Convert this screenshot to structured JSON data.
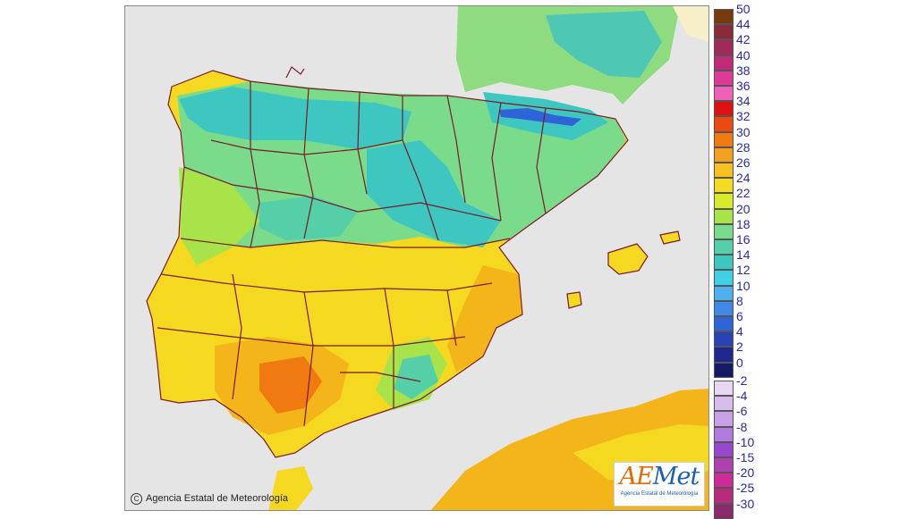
{
  "map": {
    "credit_symbol": "C",
    "credit": "Agencia Estatal de Meteorología",
    "logo_text": "Met",
    "logo_a": "AE",
    "logo_sub": "Agencia Estatal de Meteorología",
    "colors": {
      "sea": "#e5e5e5",
      "land_warm": "#f5d820",
      "land_hot": "#f3b51a",
      "land_mild": "#a8e34a",
      "land_cool": "#66d6a8",
      "land_cold": "#35b8b0",
      "boundary": "#7a1a28"
    }
  },
  "legend": {
    "positive": [
      {
        "label": "50",
        "color": "#7a3a10"
      },
      {
        "label": "44",
        "color": "#8a2a3a"
      },
      {
        "label": "42",
        "color": "#a02a58"
      },
      {
        "label": "40",
        "color": "#c02a78"
      },
      {
        "label": "38",
        "color": "#e03a98"
      },
      {
        "label": "36",
        "color": "#f060b8"
      },
      {
        "label": "34",
        "color": "#e01010"
      },
      {
        "label": "32",
        "color": "#ec4a10"
      },
      {
        "label": "30",
        "color": "#f07a10"
      },
      {
        "label": "28",
        "color": "#f3a020"
      },
      {
        "label": "26",
        "color": "#f5c020"
      },
      {
        "label": "24",
        "color": "#f5d820"
      },
      {
        "label": "22",
        "color": "#d6ec2a"
      },
      {
        "label": "20",
        "color": "#a8e34a"
      },
      {
        "label": "18",
        "color": "#7adc8a"
      },
      {
        "label": "16",
        "color": "#55cfa8"
      },
      {
        "label": "14",
        "color": "#3ec6c0"
      },
      {
        "label": "12",
        "color": "#3fd0e8"
      },
      {
        "label": "10",
        "color": "#4fb0f0"
      },
      {
        "label": "8",
        "color": "#3e88e8"
      },
      {
        "label": "6",
        "color": "#2f64d8"
      },
      {
        "label": "4",
        "color": "#2a42b8"
      },
      {
        "label": "2",
        "color": "#1e2890"
      },
      {
        "label": "0",
        "color": "#141a66"
      }
    ],
    "negative": [
      {
        "label": "-2",
        "color": "#e8d8f4"
      },
      {
        "label": "-4",
        "color": "#d8bcee"
      },
      {
        "label": "-6",
        "color": "#c8a0e8"
      },
      {
        "label": "-8",
        "color": "#b07ae0"
      },
      {
        "label": "-10",
        "color": "#9848d0"
      },
      {
        "label": "-15",
        "color": "#b040b0"
      },
      {
        "label": "-20",
        "color": "#d02a98"
      },
      {
        "label": "-25",
        "color": "#b82a80"
      },
      {
        "label": "-30",
        "color": "#8a2a6a"
      }
    ]
  }
}
